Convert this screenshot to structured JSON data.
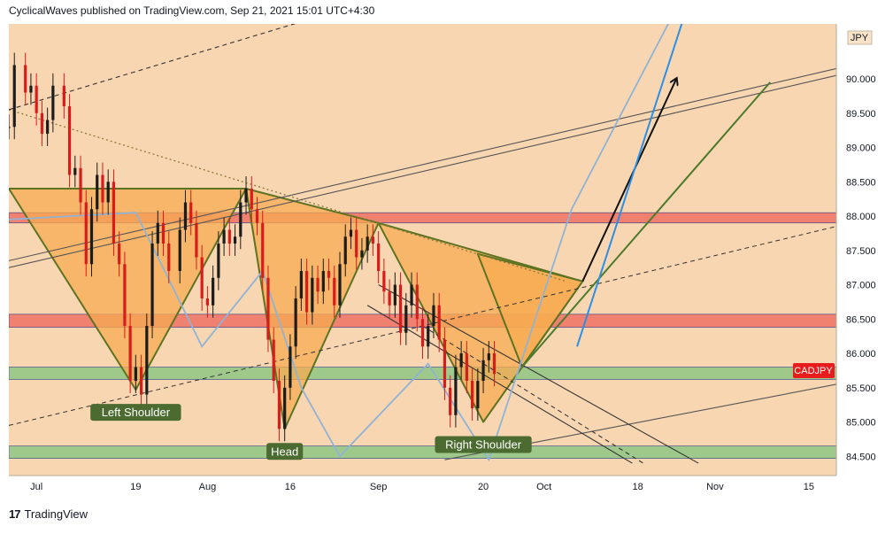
{
  "header": {
    "attribution": "CyclicalWaves published on TradingView.com, Sep 21, 2021 15:01 UTC+4:30"
  },
  "footer": {
    "brand": "TradingView",
    "logo_icon": "tradingview-logo-icon"
  },
  "colors": {
    "background": "#f9d6b2",
    "orange_pattern": "#f7ab52",
    "pattern_edge": "#5d7322",
    "red_zone": "#f08070",
    "green_zone": "#9ec98b",
    "candle_red": "#d81b1b",
    "candle_black": "#1c1c1c",
    "blue_path": "#8fb3d4",
    "bright_blue": "#2b8fe6",
    "dark_green": "#4b7a2b",
    "symbol_badge": "#e81c1c"
  },
  "chart_data": {
    "type": "candlestick",
    "symbol": "CADJPY",
    "currency": "JPY",
    "y_ticks": [
      "84.500",
      "85.000",
      "85.500",
      "86.000",
      "86.500",
      "87.000",
      "87.500",
      "88.000",
      "88.500",
      "89.000",
      "89.500",
      "90.000"
    ],
    "ylim": [
      84.22,
      90.8
    ],
    "x_tick_labels": [
      "Jul",
      "19",
      "Aug",
      "16",
      "Sep",
      "20",
      "Oct",
      "18",
      "Nov",
      "15"
    ],
    "x_tick_days": [
      0,
      18,
      31,
      46,
      62,
      81,
      92,
      109,
      123,
      140
    ],
    "x_range_days": [
      -5,
      145
    ],
    "price_series": {
      "days": [
        -5,
        -4,
        -2,
        -1,
        0,
        1,
        2,
        3,
        5,
        6,
        7,
        8,
        9,
        10,
        11,
        12,
        13,
        14,
        15,
        16,
        17,
        18,
        19,
        20,
        21,
        22,
        23,
        24,
        26,
        27,
        28,
        29,
        30,
        31,
        32,
        33,
        34,
        35,
        36,
        37,
        38,
        39,
        40,
        41,
        42,
        43,
        44,
        45,
        46,
        47,
        48,
        49,
        50,
        51,
        52,
        53,
        54,
        55,
        56,
        57,
        58,
        59,
        60,
        61,
        62,
        63,
        64,
        65,
        66,
        67,
        68,
        69,
        70,
        71,
        72,
        73,
        74,
        75,
        76,
        77,
        78,
        79,
        80,
        81,
        82,
        83
      ],
      "close": [
        89.3,
        90.2,
        89.8,
        89.9,
        89.5,
        89.2,
        89.4,
        89.9,
        89.6,
        88.6,
        88.7,
        88.2,
        87.3,
        88.1,
        88.6,
        88.2,
        88.5,
        87.6,
        87.3,
        86.4,
        85.6,
        85.8,
        85.4,
        86.4,
        87.6,
        87.9,
        87.6,
        87.2,
        87.8,
        88.2,
        87.9,
        87.4,
        86.8,
        86.7,
        87.1,
        87.6,
        87.8,
        87.6,
        87.7,
        88.2,
        88.4,
        88.1,
        87.9,
        87.1,
        86.2,
        85.6,
        84.9,
        85.5,
        86.1,
        86.8,
        87.2,
        86.6,
        87.1,
        86.9,
        87.2,
        87.1,
        86.7,
        87.3,
        87.7,
        87.8,
        87.4,
        87.5,
        87.7,
        87.6,
        87.2,
        86.9,
        86.7,
        87.0,
        86.3,
        86.7,
        87.0,
        86.5,
        86.1,
        86.4,
        86.7,
        86.2,
        85.5,
        85.1,
        85.8,
        86.0,
        85.6,
        85.2,
        85.6,
        85.9,
        86.0,
        85.7
      ]
    },
    "zones": [
      {
        "type": "resistance",
        "from": 87.9,
        "to": 88.05
      },
      {
        "type": "resistance",
        "from": 86.38,
        "to": 86.57
      },
      {
        "type": "support",
        "from": 85.62,
        "to": 85.8
      },
      {
        "type": "support",
        "from": 84.47,
        "to": 84.65
      }
    ],
    "annotations": [
      {
        "label": "Left Shoulder",
        "day": 18,
        "price": 85.47
      },
      {
        "label": "Head",
        "day": 45,
        "price": 84.9
      },
      {
        "label": "Right Shoulder",
        "day": 81,
        "price": 85.0
      }
    ],
    "last_price_label": "CADJPY"
  }
}
